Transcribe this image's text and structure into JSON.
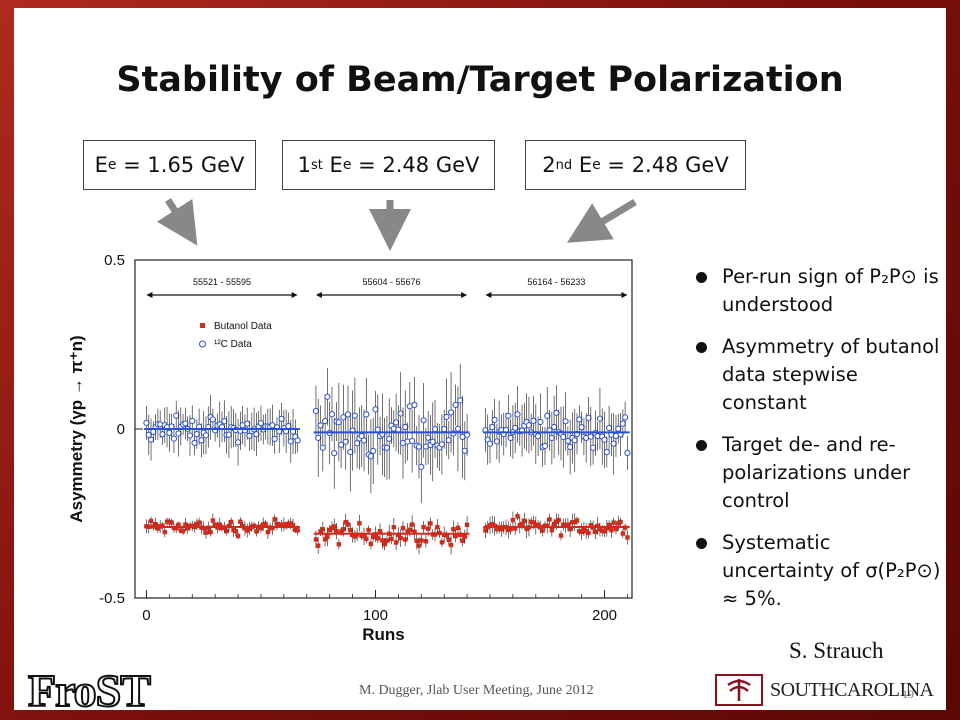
{
  "slide": {
    "title": "Stability of Beam/Target Polarization",
    "energy_boxes": [
      {
        "sup": "",
        "text": "E",
        "sub": "e",
        "rest": " = 1.65 GeV"
      },
      {
        "prefix": "1",
        "sup": "st",
        "text": " E",
        "sub": "e",
        "rest": " = 2.48 GeV"
      },
      {
        "prefix": "2",
        "sup": "nd",
        "text": " E",
        "sub": "e",
        "rest": " = 2.48 GeV"
      }
    ],
    "bullets": [
      "Per-run sign of P₂P⊙ is understood",
      "Asymmetry of butanol data stepwise constant",
      "Target de- and re-polarizations under control",
      "Systematic uncertainty of σ(P₂P⊙) ≈ 5%."
    ],
    "credit": "S. Strauch",
    "footer": "M. Dugger, Jlab User Meeting, June 2012",
    "page_number": "19",
    "logo_left": "FroST",
    "logo_right": "SOUTHCAROLINA"
  },
  "chart_data": {
    "type": "scatter",
    "xlabel": "Runs",
    "ylabel": "Asymmetry (γp → π⁺n)",
    "xlim": [
      -5,
      212
    ],
    "ylim": [
      -0.5,
      0.5
    ],
    "x_ticks": [
      0,
      100,
      200
    ],
    "x_tick_labels": [
      "0",
      "100",
      "200"
    ],
    "y_ticks": [
      0.5,
      0,
      -0.5
    ],
    "y_tick_labels": [
      "0.5",
      "0",
      "-0.5"
    ],
    "legend": {
      "placement": "upper-left",
      "entries": [
        "Butanol Data",
        "¹²C Data"
      ]
    },
    "run_ranges": [
      {
        "label": "55521 - 55595",
        "x": [
          0,
          66
        ]
      },
      {
        "label": "55604 - 55676",
        "x": [
          74,
          140
        ]
      },
      {
        "label": "56164 - 56233",
        "x": [
          148,
          210
        ]
      }
    ],
    "series": [
      {
        "name": "Butanol Data",
        "color": "#d42a1c",
        "marker": "square",
        "segments": [
          {
            "x": [
              0,
              66
            ],
            "mean": -0.29,
            "spread": 0.02,
            "err": 0.015,
            "fit": -0.29
          },
          {
            "x": [
              74,
              140
            ],
            "mean": -0.31,
            "spread": 0.03,
            "err": 0.02,
            "fit": -0.31
          },
          {
            "x": [
              148,
              210
            ],
            "mean": -0.29,
            "spread": 0.02,
            "err": 0.02,
            "fit": -0.29
          }
        ]
      },
      {
        "name": "¹²C Data",
        "color": "#2a50d8",
        "marker": "open-circle",
        "segments": [
          {
            "x": [
              0,
              66
            ],
            "mean": 0.0,
            "spread": 0.03,
            "err": 0.05,
            "fit": 0.0
          },
          {
            "x": [
              74,
              140
            ],
            "mean": -0.01,
            "spread": 0.07,
            "err": 0.09,
            "fit": -0.01
          },
          {
            "x": [
              148,
              210
            ],
            "mean": -0.01,
            "spread": 0.05,
            "err": 0.07,
            "fit": -0.01
          }
        ]
      }
    ],
    "fit_lines": [
      {
        "series": "¹²C Data",
        "color": "#2a50d8"
      },
      {
        "series": "Butanol Data",
        "color": "#d42a1c"
      }
    ]
  }
}
